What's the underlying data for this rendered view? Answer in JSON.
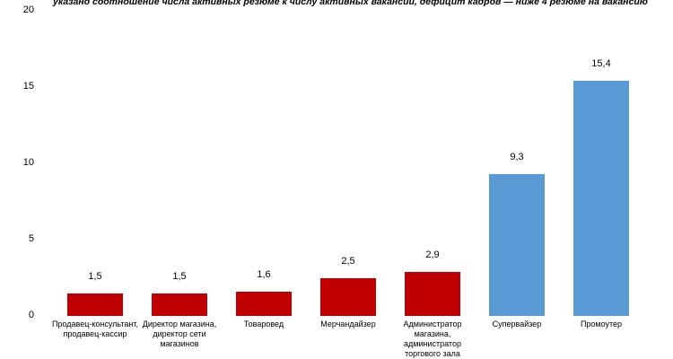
{
  "chart_data": {
    "type": "bar",
    "subtitle": "указано соотношение числа активных резюме к числу активных вакансий, дефицит кадров — ниже 4 резюме на вакансию",
    "categories": [
      "Продавец-консультант, продавец-кассир",
      "Директор магазина, директор сети магазинов",
      "Товаровед",
      "Мерчандайзер",
      "Администратор магазина, администратор торгового зала",
      "Супервайзер",
      "Промоутер"
    ],
    "category_lines": [
      [
        "Продавец-консультант,",
        "продавец-кассир"
      ],
      [
        "Директор магазина,",
        "директор сети",
        "магазинов"
      ],
      [
        "Товаровед"
      ],
      [
        "Мерчандайзер"
      ],
      [
        "Администратор",
        "магазина,",
        "администратор",
        "торгового зала"
      ],
      [
        "Супервайзер"
      ],
      [
        "Промоутер"
      ]
    ],
    "values": [
      1.5,
      1.5,
      1.6,
      2.5,
      2.9,
      9.3,
      15.4
    ],
    "value_labels": [
      "1,5",
      "1,5",
      "1,6",
      "2,5",
      "2,9",
      "9,3",
      "15,4"
    ],
    "bar_colors": [
      "#c00000",
      "#c00000",
      "#c00000",
      "#c00000",
      "#c00000",
      "#5b9bd5",
      "#5b9bd5"
    ],
    "ylim": [
      0,
      20
    ],
    "yticks": [
      0,
      5,
      10,
      15,
      20
    ],
    "xlabel": "",
    "ylabel": "",
    "grid": false,
    "legend": false,
    "colors": {
      "red_bar": "#c00000",
      "blue_bar": "#5b9bd5",
      "text": "#000000",
      "background": "#ffffff"
    }
  }
}
